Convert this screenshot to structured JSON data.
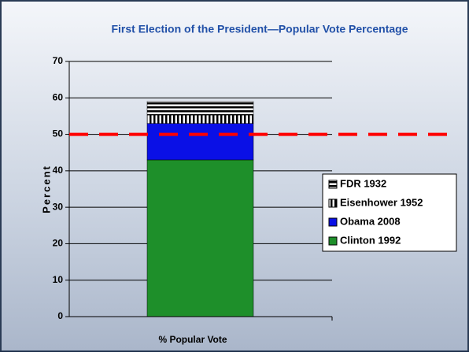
{
  "chart_data": {
    "type": "stacked_bar",
    "title": "First Election of the President—Popular Vote Percentage",
    "y_label": "Percent",
    "categories": [
      "% Popular Vote"
    ],
    "series": [
      {
        "name": "Clinton 1992",
        "color": "#1e8f2a",
        "values": [
          43
        ]
      },
      {
        "name": "Obama 2008",
        "color": "#0a10e6",
        "values": [
          10
        ]
      },
      {
        "name": "Eisenhower 1952",
        "color": "#000000",
        "pattern": "vertical",
        "values": [
          2.3
        ]
      },
      {
        "name": "FDR 1932",
        "color": "#000000",
        "pattern": "horizontal",
        "values": [
          3.7
        ]
      }
    ],
    "ylim": [
      0,
      70
    ],
    "yticks": [
      0,
      10,
      20,
      30,
      40,
      50,
      60,
      70
    ],
    "grid": true,
    "reference_line": {
      "value": 50,
      "color": "#ff0000"
    },
    "legend": "right"
  }
}
